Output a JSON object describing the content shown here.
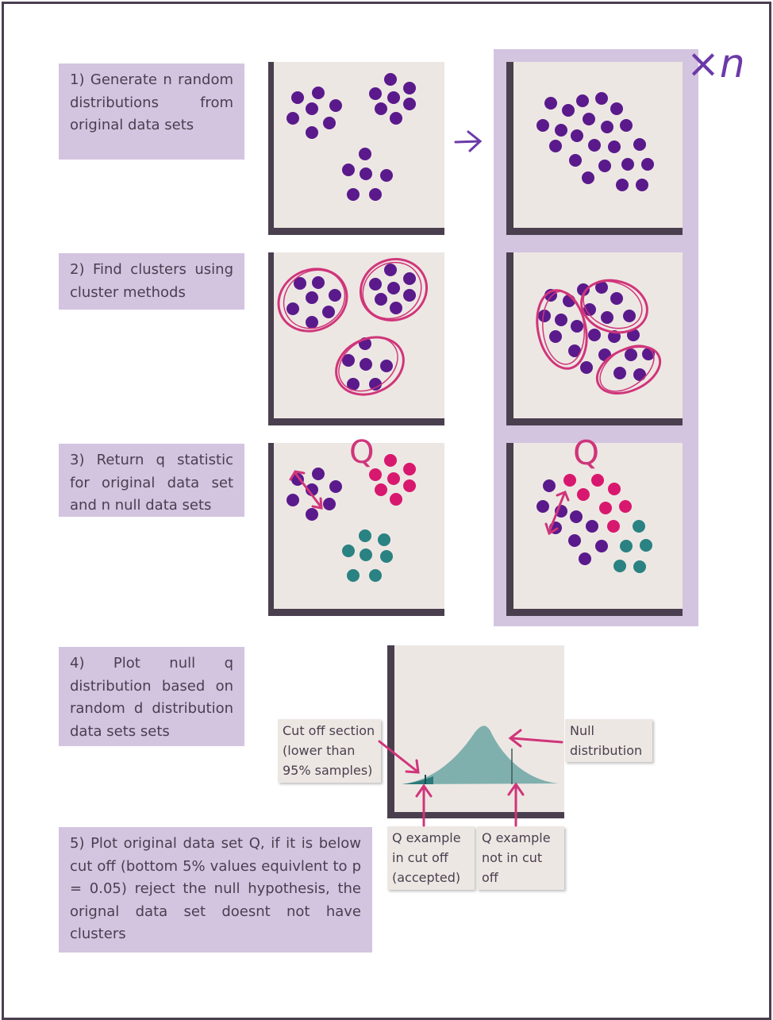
{
  "steps": {
    "step1": "1) Generate n random distributions from original data sets",
    "step2": "2) Find clusters using cluster methods",
    "step3": "3) Return q statistic for original data set and n null data sets",
    "step4": "4) Plot null q distribution based on random d distribution data sets sets",
    "step5": "5) Plot original data set Q, if it is below cut off (bottom 5% values equivlent to p = 0.05) reject the null hypothesis, the orignal data set doesnt not have clusters"
  },
  "repeat_label": "×n",
  "cluster_label": "Q",
  "annotations": {
    "cutoff": [
      "Cut off section",
      "(lower than",
      "95% samples)"
    ],
    "null": [
      "Null",
      "distribution"
    ],
    "q_accepted": [
      "Q example",
      "in cut off",
      "(accepted)"
    ],
    "q_not": [
      "Q example",
      "not in cut",
      "off"
    ]
  },
  "colors": {
    "background": "#ffffff",
    "step_box": "#d3c4e0",
    "panel": "#ede7e3",
    "axis": "#4a3f4f",
    "text": "#4a3f4f",
    "dot_purple": "#5a1a8c",
    "dot_pink": "#d8186e",
    "dot_teal": "#2a8282",
    "outline": "#d0357a",
    "distribution": "#7fb0ad",
    "cutoff_fill": "#2a7a7a"
  },
  "icons": {
    "repeat": "times-n-handwritten",
    "arrow": "hand-drawn-arrow-icon"
  }
}
